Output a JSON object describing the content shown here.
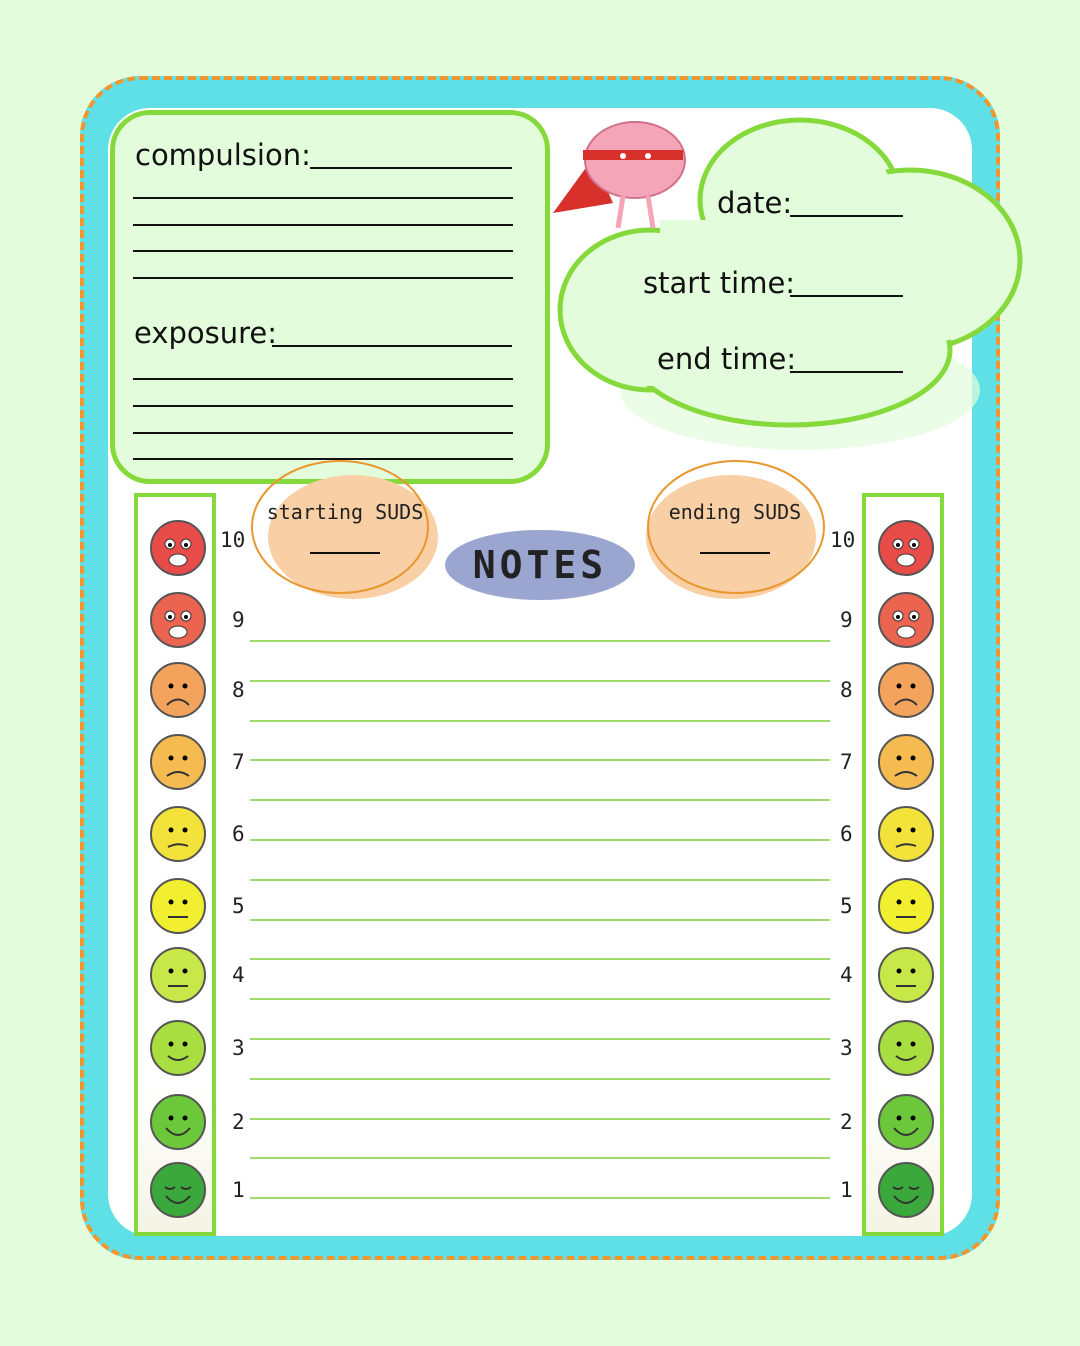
{
  "colors": {
    "background": "#e3fcdc",
    "frame": "#5ee0e6",
    "dash": "#f0962e",
    "green": "#86d93a",
    "cloud_peach": "#f9cfa5",
    "notes_pill": "#9aa5d0"
  },
  "form": {
    "compulsion_label": "compulsion:",
    "exposure_label": "exposure:",
    "date_label": "date:",
    "start_time_label": "start time:",
    "end_time_label": "end time:"
  },
  "suds": {
    "starting_label": "starting SUDS",
    "ending_label": "ending SUDS"
  },
  "notes": {
    "title": "NOTES"
  },
  "scale": {
    "levels": [
      {
        "value": "10",
        "face": "terrified",
        "color": "#e84c48"
      },
      {
        "value": "9",
        "face": "scared",
        "color": "#ea6450"
      },
      {
        "value": "8",
        "face": "worried",
        "color": "#f4a35c"
      },
      {
        "value": "7",
        "face": "sad",
        "color": "#f6bb50"
      },
      {
        "value": "6",
        "face": "uneasy",
        "color": "#f2e23a"
      },
      {
        "value": "5",
        "face": "neutral",
        "color": "#f2ef30"
      },
      {
        "value": "4",
        "face": "neutral",
        "color": "#c8e84a"
      },
      {
        "value": "3",
        "face": "slight-smile",
        "color": "#a8de40"
      },
      {
        "value": "2",
        "face": "smile",
        "color": "#6cc83a"
      },
      {
        "value": "1",
        "face": "calm",
        "color": "#3aa83a"
      }
    ]
  }
}
